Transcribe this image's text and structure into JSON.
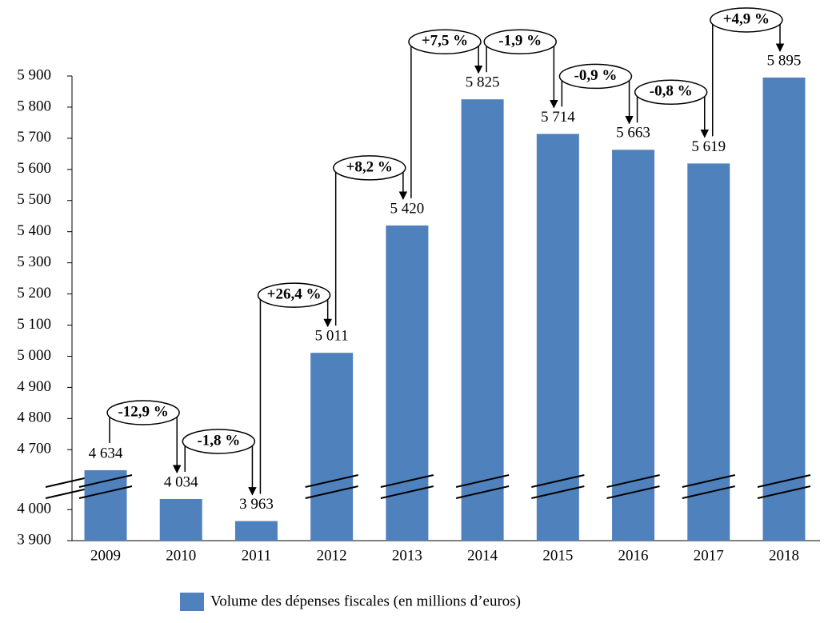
{
  "chart_data": {
    "type": "bar",
    "categories": [
      "2009",
      "2010",
      "2011",
      "2012",
      "2013",
      "2014",
      "2015",
      "2016",
      "2017",
      "2018"
    ],
    "series": [
      {
        "name": "Volume des dépenses fiscales (en millions d’euros)",
        "color": "#4f81bd",
        "values": [
          4634,
          4034,
          3963,
          5011,
          5420,
          5825,
          5714,
          5663,
          5619,
          5895
        ],
        "value_labels": [
          "4 634",
          "4 034",
          "3 963",
          "5 011",
          "5 420",
          "5 825",
          "5 714",
          "5 663",
          "5 619",
          "5 895"
        ]
      }
    ],
    "y_segments": [
      {
        "ylim": [
          3900,
          4070
        ],
        "yticks": [
          {
            "value": 3900,
            "label": "3 900"
          },
          {
            "value": 4000,
            "label": "4 000"
          }
        ]
      },
      {
        "ylim": [
          4580,
          5900
        ],
        "yticks": [
          {
            "value": 4700,
            "label": "4 700"
          },
          {
            "value": 4800,
            "label": "4 800"
          },
          {
            "value": 4900,
            "label": "4 900"
          },
          {
            "value": 5000,
            "label": "5 000"
          },
          {
            "value": 5100,
            "label": "5 100"
          },
          {
            "value": 5200,
            "label": "5 200"
          },
          {
            "value": 5300,
            "label": "5 300"
          },
          {
            "value": 5400,
            "label": "5 400"
          },
          {
            "value": 5500,
            "label": "5 500"
          },
          {
            "value": 5600,
            "label": "5 600"
          },
          {
            "value": 5700,
            "label": "5 700"
          },
          {
            "value": 5800,
            "label": "5 800"
          },
          {
            "value": 5900,
            "label": "5 900"
          }
        ]
      }
    ],
    "annotations": [
      "-12,9 %",
      "-1,8 %",
      "+26,4 %",
      "+8,2 %",
      "+7,5 %",
      "-1,9 %",
      "-0,9 %",
      "-0,8 %",
      "+4,9 %"
    ],
    "legend": "bottom"
  }
}
